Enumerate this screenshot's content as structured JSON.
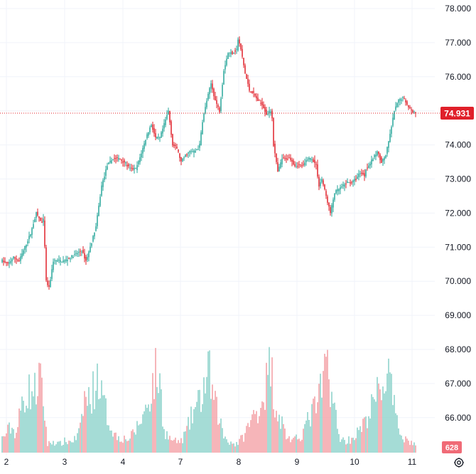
{
  "chart_data": {
    "type": "candlestick",
    "x_labels": [
      "2",
      "3",
      "4",
      "7",
      "8",
      "9",
      "10",
      "11"
    ],
    "y_ticks": [
      "78.000",
      "77.000",
      "76.000",
      "75.000",
      "74.000",
      "73.000",
      "72.000",
      "71.000",
      "70.000",
      "69.000",
      "68.000",
      "67.000",
      "66.000"
    ],
    "ylim": [
      65.2,
      78.3
    ],
    "last_price": 74.931,
    "last_price_label": "74.931",
    "last_volume_label": "628",
    "grid": true,
    "colors": {
      "up": "#26a69a",
      "down": "#e0202a",
      "vol_up": "#8fd3cc",
      "vol_down": "#f4a3a8",
      "grid": "#f0f3fa",
      "axis_text": "#131722",
      "price_line": "#e0202a"
    },
    "price_path": [
      [
        0,
        70.6
      ],
      [
        4,
        70.5
      ],
      [
        8,
        70.7
      ],
      [
        12,
        70.6
      ],
      [
        16,
        71.0
      ],
      [
        20,
        71.4
      ],
      [
        24,
        72.0
      ],
      [
        28,
        71.7
      ],
      [
        29,
        71.8
      ],
      [
        30,
        71.0
      ],
      [
        31,
        70.0
      ],
      [
        33,
        69.8
      ],
      [
        36,
        70.6
      ],
      [
        40,
        70.6
      ],
      [
        44,
        70.6
      ],
      [
        48,
        70.7
      ],
      [
        52,
        70.8
      ],
      [
        56,
        70.9
      ],
      [
        59,
        70.6
      ],
      [
        62,
        71.0
      ],
      [
        66,
        71.6
      ],
      [
        70,
        72.8
      ],
      [
        74,
        73.4
      ],
      [
        78,
        73.6
      ],
      [
        82,
        73.6
      ],
      [
        86,
        73.5
      ],
      [
        90,
        73.3
      ],
      [
        94,
        73.3
      ],
      [
        96,
        73.5
      ],
      [
        99,
        73.9
      ],
      [
        102,
        74.3
      ],
      [
        105,
        74.6
      ],
      [
        108,
        74.2
      ],
      [
        111,
        74.2
      ],
      [
        114,
        74.6
      ],
      [
        117,
        75.0
      ],
      [
        120,
        74.0
      ],
      [
        123,
        73.9
      ],
      [
        126,
        73.5
      ],
      [
        129,
        73.7
      ],
      [
        132,
        73.8
      ],
      [
        135,
        73.8
      ],
      [
        138,
        73.9
      ],
      [
        139,
        74.0
      ],
      [
        141,
        74.7
      ],
      [
        144,
        75.3
      ],
      [
        147,
        75.8
      ],
      [
        150,
        75.3
      ],
      [
        153,
        75.0
      ],
      [
        156,
        76.2
      ],
      [
        159,
        76.7
      ],
      [
        162,
        76.7
      ],
      [
        165,
        76.8
      ],
      [
        166,
        77.1
      ],
      [
        168,
        76.8
      ],
      [
        171,
        76.1
      ],
      [
        174,
        75.6
      ],
      [
        177,
        75.5
      ],
      [
        180,
        75.3
      ],
      [
        183,
        75.2
      ],
      [
        186,
        74.9
      ],
      [
        189,
        75.0
      ],
      [
        190,
        74.8
      ],
      [
        191,
        74.0
      ],
      [
        194,
        73.2
      ],
      [
        197,
        73.6
      ],
      [
        200,
        73.6
      ],
      [
        203,
        73.6
      ],
      [
        206,
        73.4
      ],
      [
        209,
        73.4
      ],
      [
        212,
        73.4
      ],
      [
        215,
        73.6
      ],
      [
        218,
        73.6
      ],
      [
        221,
        73.4
      ],
      [
        223,
        72.8
      ],
      [
        225,
        73.0
      ],
      [
        228,
        72.5
      ],
      [
        231,
        72.0
      ],
      [
        234,
        72.6
      ],
      [
        237,
        72.7
      ],
      [
        240,
        72.8
      ],
      [
        243,
        72.9
      ],
      [
        246,
        72.9
      ],
      [
        249,
        73.0
      ],
      [
        252,
        73.2
      ],
      [
        255,
        73.1
      ],
      [
        256,
        73.3
      ],
      [
        258,
        73.4
      ],
      [
        261,
        73.6
      ],
      [
        264,
        73.8
      ],
      [
        267,
        73.5
      ],
      [
        270,
        73.7
      ],
      [
        273,
        74.3
      ],
      [
        276,
        75.0
      ],
      [
        279,
        75.3
      ],
      [
        282,
        75.4
      ],
      [
        285,
        75.2
      ],
      [
        288,
        75.0
      ],
      [
        291,
        74.93
      ]
    ],
    "volume_path": [
      [
        0,
        5
      ],
      [
        6,
        9
      ],
      [
        10,
        7
      ],
      [
        15,
        20
      ],
      [
        20,
        22
      ],
      [
        24,
        22
      ],
      [
        26,
        28
      ],
      [
        28,
        21
      ],
      [
        30,
        14
      ],
      [
        32,
        3
      ],
      [
        36,
        4
      ],
      [
        40,
        3
      ],
      [
        44,
        4
      ],
      [
        48,
        4
      ],
      [
        52,
        5
      ],
      [
        55,
        8
      ],
      [
        58,
        20
      ],
      [
        60,
        18
      ],
      [
        64,
        22
      ],
      [
        68,
        28
      ],
      [
        70,
        20
      ],
      [
        73,
        15
      ],
      [
        76,
        10
      ],
      [
        80,
        6
      ],
      [
        86,
        5
      ],
      [
        90,
        5
      ],
      [
        95,
        9
      ],
      [
        100,
        14
      ],
      [
        105,
        22
      ],
      [
        108,
        28
      ],
      [
        111,
        25
      ],
      [
        114,
        8
      ],
      [
        118,
        5
      ],
      [
        122,
        4
      ],
      [
        126,
        4
      ],
      [
        130,
        8
      ],
      [
        135,
        15
      ],
      [
        139,
        18
      ],
      [
        143,
        25
      ],
      [
        146,
        28
      ],
      [
        149,
        18
      ],
      [
        152,
        14
      ],
      [
        156,
        6
      ],
      [
        160,
        4
      ],
      [
        164,
        3
      ],
      [
        167,
        4
      ],
      [
        170,
        6
      ],
      [
        174,
        10
      ],
      [
        178,
        14
      ],
      [
        182,
        17
      ],
      [
        186,
        25
      ],
      [
        189,
        32
      ],
      [
        192,
        18
      ],
      [
        196,
        12
      ],
      [
        200,
        6
      ],
      [
        205,
        4
      ],
      [
        210,
        6
      ],
      [
        214,
        10
      ],
      [
        218,
        14
      ],
      [
        222,
        18
      ],
      [
        226,
        24
      ],
      [
        228,
        34
      ],
      [
        231,
        25
      ],
      [
        234,
        15
      ],
      [
        237,
        6
      ],
      [
        241,
        4
      ],
      [
        246,
        5
      ],
      [
        250,
        7
      ],
      [
        255,
        10
      ],
      [
        258,
        14
      ],
      [
        262,
        18
      ],
      [
        265,
        22
      ],
      [
        269,
        25
      ],
      [
        272,
        28
      ],
      [
        275,
        18
      ],
      [
        278,
        10
      ],
      [
        282,
        6
      ],
      [
        286,
        4
      ],
      [
        291,
        3
      ]
    ]
  },
  "settings_icon": "gear-icon"
}
